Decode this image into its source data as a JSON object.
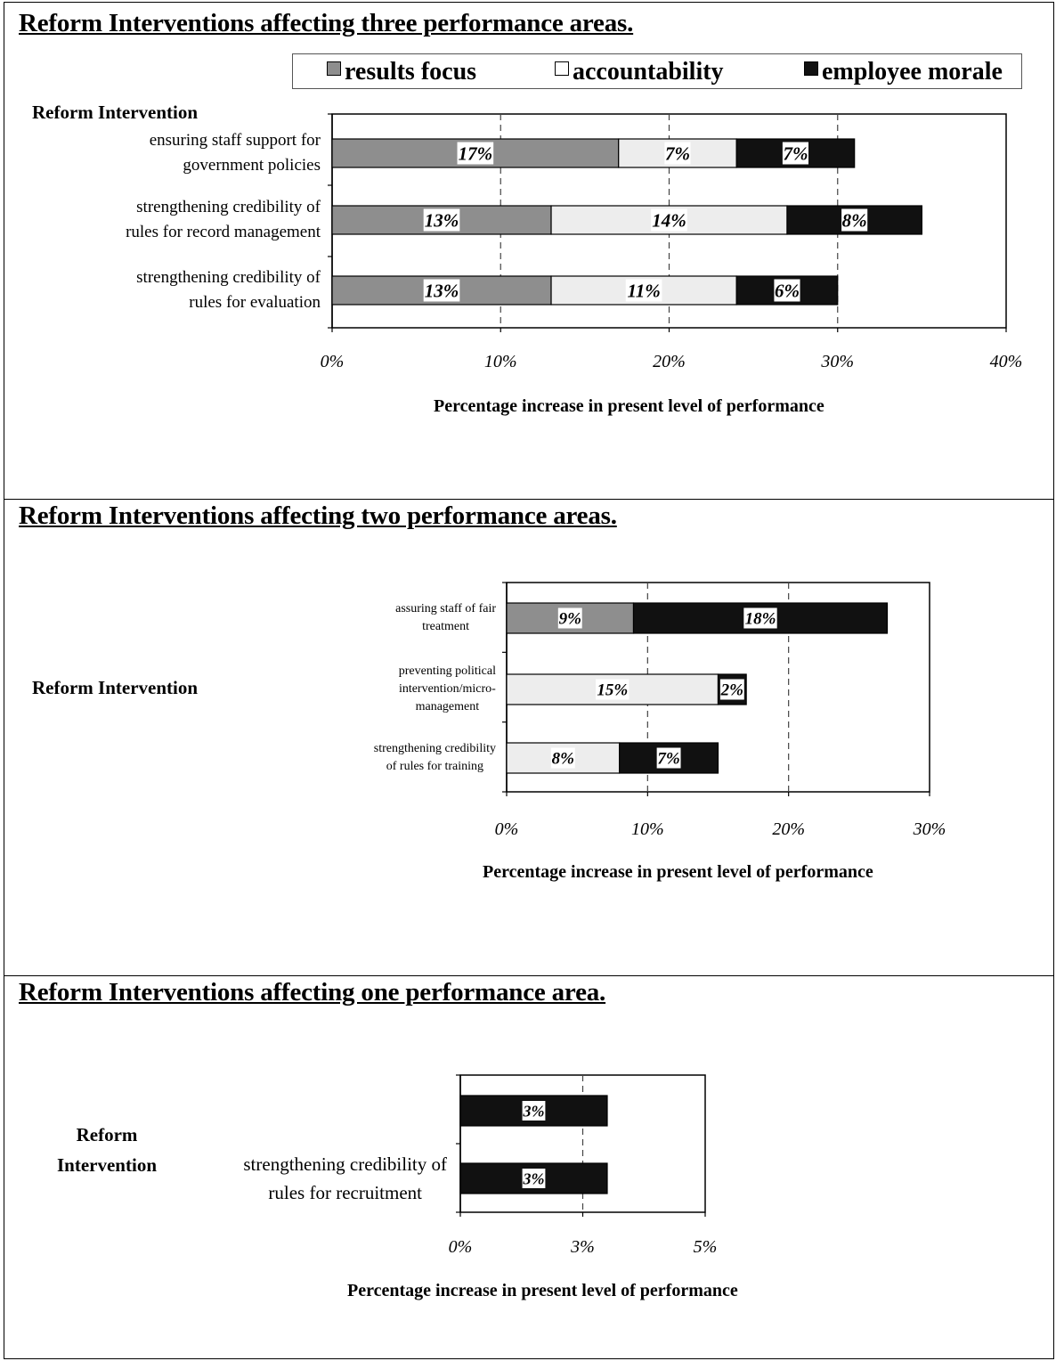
{
  "colors": {
    "results_focus": "#8e8e8e",
    "accountability": "#ededed",
    "employee_morale": "#111111",
    "gridline": "#444444"
  },
  "legend": {
    "results_focus": "results focus",
    "accountability": "accountability",
    "employee_morale": "employee morale"
  },
  "chart_data": [
    {
      "type": "bar",
      "orientation": "horizontal",
      "stacked": true,
      "title": "Reform Interventions affecting three performance areas.",
      "category_axis_title": "Reform Intervention",
      "categories": [
        "ensuring staff support for government policies",
        "strengthening credibility of rules for record management",
        "strengthening credibility of rules for evaluation"
      ],
      "category_lines": [
        [
          "ensuring staff support for",
          "government policies"
        ],
        [
          "strengthening credibility of",
          "rules for record management"
        ],
        [
          "strengthening credibility of",
          "rules for evaluation"
        ]
      ],
      "series": [
        {
          "name": "results focus",
          "values": [
            17,
            13,
            13
          ],
          "labels": [
            "17%",
            "13%",
            "13%"
          ]
        },
        {
          "name": "accountability",
          "values": [
            7,
            14,
            11
          ],
          "labels": [
            "7%",
            "14%",
            "11%"
          ]
        },
        {
          "name": "employee morale",
          "values": [
            7,
            8,
            6
          ],
          "labels": [
            "7%",
            "8%",
            "6%"
          ]
        }
      ],
      "xlim": [
        0,
        40
      ],
      "ticks": [
        "0%",
        "10%",
        "20%",
        "30%",
        "40%"
      ],
      "tick_values": [
        0,
        10,
        20,
        30,
        40
      ],
      "xlabel": "Percentage increase in present level of performance",
      "grid": "dashed vertical",
      "legend_position": "top"
    },
    {
      "type": "bar",
      "orientation": "horizontal",
      "stacked": true,
      "title": "Reform Interventions affecting two performance areas.",
      "category_axis_title": "Reform Intervention",
      "categories": [
        "assuring staff of fair treatment",
        "preventing political intervention/micro-management",
        "strengthening credibility of rules for training"
      ],
      "category_lines": [
        [
          "assuring staff of fair",
          "treatment"
        ],
        [
          "preventing political",
          "intervention/micro-",
          "management"
        ],
        [
          "strengthening credibility",
          "of rules for training"
        ]
      ],
      "series": [
        {
          "name": "results focus",
          "values": [
            9,
            0,
            0
          ],
          "labels": [
            "9%",
            "",
            ""
          ]
        },
        {
          "name": "accountability",
          "values": [
            0,
            15,
            8
          ],
          "labels": [
            "",
            "15%",
            "8%"
          ]
        },
        {
          "name": "employee morale",
          "values": [
            18,
            2,
            7
          ],
          "labels": [
            "18%",
            "2%",
            "7%"
          ]
        }
      ],
      "xlim": [
        0,
        30
      ],
      "ticks": [
        "0%",
        "10%",
        "20%",
        "30%"
      ],
      "tick_values": [
        0,
        10,
        20,
        30
      ],
      "xlabel": "Percentage increase in present level of performance",
      "grid": "dashed vertical"
    },
    {
      "type": "bar",
      "orientation": "horizontal",
      "stacked": true,
      "title": "Reform Interventions affecting one performance area.",
      "category_axis_title": "Reform Intervention",
      "categories": [
        "",
        "strengthening credibility of rules for recruitment"
      ],
      "category_lines": [
        [],
        [
          "strengthening credibility of",
          "rules for recruitment"
        ]
      ],
      "series": [
        {
          "name": "employee morale",
          "values": [
            3,
            3
          ],
          "labels": [
            "3%",
            "3%"
          ]
        }
      ],
      "xlim": [
        0,
        5
      ],
      "ticks": [
        "0%",
        "3%",
        "5%"
      ],
      "tick_values": [
        0,
        2.5,
        5
      ],
      "xlabel": "Percentage increase in present level of performance",
      "grid": "dashed vertical"
    }
  ]
}
